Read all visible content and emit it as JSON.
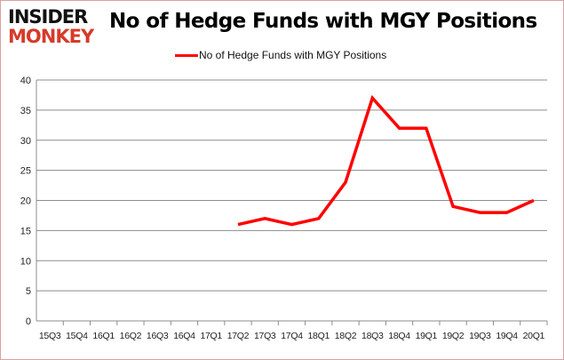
{
  "logo": {
    "line1": "INSIDER",
    "line2": "MONKEY"
  },
  "chart_data": {
    "type": "line",
    "title": "No of Hedge Funds with MGY Positions",
    "xlabel": "",
    "ylabel": "",
    "categories": [
      "15Q3",
      "15Q4",
      "16Q1",
      "16Q2",
      "16Q3",
      "16Q4",
      "17Q1",
      "17Q2",
      "17Q3",
      "17Q4",
      "18Q1",
      "18Q2",
      "18Q3",
      "18Q4",
      "19Q1",
      "19Q2",
      "19Q3",
      "19Q4",
      "20Q1"
    ],
    "series": [
      {
        "name": "No of Hedge Funds with MGY Positions",
        "color": "#ff0000",
        "values": [
          null,
          null,
          null,
          null,
          null,
          null,
          null,
          16,
          17,
          16,
          17,
          23,
          37,
          32,
          32,
          19,
          18,
          18,
          20
        ]
      }
    ],
    "ylim": [
      0,
      40
    ],
    "yticks": [
      0,
      5,
      10,
      15,
      20,
      25,
      30,
      35,
      40
    ],
    "grid": true,
    "legend": "top-center"
  }
}
